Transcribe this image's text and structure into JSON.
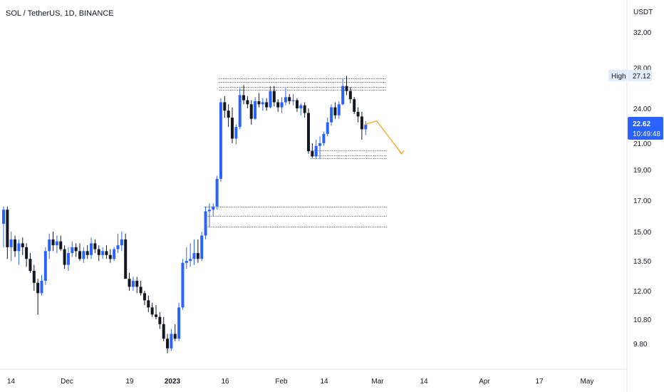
{
  "chart_data": {
    "type": "candlestick",
    "title": "SOL / TetherUS, 1D, BINANCE",
    "currency": "USDT",
    "y_ticks": [
      "32.00",
      "28.00",
      "24.00",
      "21.00",
      "19.00",
      "17.00",
      "15.00",
      "13.50",
      "12.00",
      "10.80",
      "9.80"
    ],
    "x_ticks": [
      "14",
      "Dec",
      "19",
      "2023",
      "16",
      "Feb",
      "14",
      "Mar",
      "14",
      "Apr",
      "17",
      "May"
    ],
    "high_label": "High",
    "high_value": "27.12",
    "last_price": "22.62",
    "countdown": "10:49:48",
    "colors": {
      "up": "#2962ff",
      "down": "#131722",
      "projection": "#f5a623",
      "price_tag": "#2962ff",
      "high_tag_bg": "#e3ecfb"
    },
    "candles": [
      [
        15.5,
        16.6,
        14.2,
        16.4
      ],
      [
        16.4,
        16.6,
        13.6,
        14.2
      ],
      [
        14.2,
        15.0,
        13.5,
        14.6
      ],
      [
        14.6,
        14.8,
        13.7,
        14.0
      ],
      [
        14.0,
        14.6,
        13.3,
        14.4
      ],
      [
        14.4,
        14.7,
        13.8,
        14.2
      ],
      [
        14.2,
        14.4,
        13.2,
        13.6
      ],
      [
        13.6,
        13.9,
        12.9,
        13.0
      ],
      [
        13.0,
        13.3,
        12.0,
        12.4
      ],
      [
        12.4,
        12.6,
        11.0,
        11.9
      ],
      [
        11.9,
        12.8,
        11.8,
        12.5
      ],
      [
        12.5,
        14.2,
        12.3,
        14.0
      ],
      [
        14.0,
        14.9,
        13.6,
        14.6
      ],
      [
        14.6,
        15.0,
        14.0,
        14.3
      ],
      [
        14.3,
        14.8,
        13.9,
        14.5
      ],
      [
        14.5,
        14.8,
        14.0,
        14.1
      ],
      [
        14.1,
        14.3,
        13.1,
        13.3
      ],
      [
        13.3,
        14.2,
        13.0,
        13.9
      ],
      [
        13.9,
        14.5,
        13.7,
        14.2
      ],
      [
        14.2,
        14.4,
        13.7,
        14.0
      ],
      [
        14.0,
        14.4,
        13.5,
        13.6
      ],
      [
        13.6,
        14.2,
        13.4,
        14.0
      ],
      [
        14.0,
        14.3,
        13.6,
        13.8
      ],
      [
        13.8,
        14.7,
        13.6,
        14.4
      ],
      [
        14.4,
        14.6,
        13.9,
        14.1
      ],
      [
        14.1,
        14.3,
        13.5,
        13.8
      ],
      [
        13.8,
        14.2,
        13.6,
        14.0
      ],
      [
        14.0,
        14.3,
        13.6,
        13.8
      ],
      [
        13.8,
        14.1,
        13.4,
        13.6
      ],
      [
        13.6,
        14.2,
        13.5,
        14.1
      ],
      [
        14.1,
        14.9,
        13.9,
        14.3
      ],
      [
        14.3,
        15.0,
        14.0,
        14.6
      ],
      [
        14.6,
        14.9,
        12.7,
        12.6
      ],
      [
        12.6,
        12.9,
        12.0,
        12.2
      ],
      [
        12.2,
        12.7,
        12.0,
        12.5
      ],
      [
        12.5,
        12.7,
        11.9,
        12.2
      ],
      [
        12.2,
        12.5,
        11.8,
        11.9
      ],
      [
        11.9,
        12.0,
        11.4,
        11.6
      ],
      [
        11.6,
        11.8,
        11.1,
        11.3
      ],
      [
        11.3,
        11.5,
        10.9,
        11.0
      ],
      [
        11.0,
        11.4,
        10.8,
        10.9
      ],
      [
        10.9,
        11.1,
        10.4,
        10.6
      ],
      [
        10.6,
        10.9,
        9.9,
        10.0
      ],
      [
        10.0,
        10.2,
        9.4,
        9.6
      ],
      [
        9.6,
        10.4,
        9.5,
        10.2
      ],
      [
        10.2,
        10.6,
        9.9,
        10.0
      ],
      [
        10.0,
        11.5,
        9.9,
        11.3
      ],
      [
        11.3,
        13.6,
        11.2,
        13.4
      ],
      [
        13.4,
        14.2,
        13.1,
        13.5
      ],
      [
        13.5,
        14.4,
        13.2,
        13.6
      ],
      [
        13.6,
        14.6,
        13.3,
        13.9
      ],
      [
        13.9,
        14.6,
        13.4,
        13.6
      ],
      [
        13.6,
        15.0,
        13.5,
        14.8
      ],
      [
        14.8,
        16.6,
        14.6,
        16.3
      ],
      [
        16.3,
        16.8,
        15.3,
        16.4
      ],
      [
        16.4,
        16.8,
        16.0,
        16.6
      ],
      [
        16.6,
        18.6,
        16.4,
        18.4
      ],
      [
        18.4,
        25.0,
        18.2,
        24.6
      ],
      [
        24.6,
        25.2,
        23.2,
        23.8
      ],
      [
        23.8,
        24.4,
        22.4,
        23.2
      ],
      [
        23.2,
        24.1,
        21.0,
        21.4
      ],
      [
        21.4,
        22.6,
        20.9,
        22.4
      ],
      [
        22.4,
        26.0,
        22.2,
        25.3
      ],
      [
        25.3,
        26.3,
        24.4,
        24.8
      ],
      [
        24.8,
        25.2,
        24.0,
        24.4
      ],
      [
        24.4,
        24.8,
        22.6,
        23.1
      ],
      [
        23.1,
        25.1,
        23.0,
        24.7
      ],
      [
        24.7,
        25.5,
        24.1,
        24.4
      ],
      [
        24.4,
        25.0,
        23.8,
        24.6
      ],
      [
        24.6,
        25.0,
        23.8,
        24.1
      ],
      [
        24.1,
        26.2,
        24.0,
        25.7
      ],
      [
        25.7,
        26.2,
        24.2,
        24.6
      ],
      [
        24.6,
        24.9,
        23.7,
        24.1
      ],
      [
        24.1,
        25.1,
        23.6,
        24.6
      ],
      [
        24.6,
        26.0,
        24.3,
        25.1
      ],
      [
        25.1,
        25.4,
        24.4,
        24.7
      ],
      [
        24.7,
        25.4,
        24.3,
        24.8
      ],
      [
        24.8,
        25.0,
        23.7,
        24.0
      ],
      [
        24.0,
        24.5,
        23.4,
        24.3
      ],
      [
        24.3,
        24.6,
        23.2,
        23.6
      ],
      [
        23.6,
        24.0,
        20.2,
        20.4
      ],
      [
        20.4,
        21.0,
        19.9,
        20.0
      ],
      [
        20.0,
        21.3,
        19.8,
        20.8
      ],
      [
        20.8,
        21.6,
        19.8,
        21.0
      ],
      [
        21.0,
        22.0,
        20.8,
        21.8
      ],
      [
        21.8,
        23.2,
        21.6,
        22.8
      ],
      [
        22.8,
        24.4,
        22.5,
        24.1
      ],
      [
        24.1,
        24.6,
        23.1,
        23.4
      ],
      [
        23.4,
        24.7,
        23.1,
        24.4
      ],
      [
        24.4,
        27.0,
        24.3,
        26.2
      ],
      [
        26.2,
        27.2,
        25.3,
        25.7
      ],
      [
        25.7,
        26.1,
        24.5,
        24.9
      ],
      [
        24.9,
        25.1,
        23.5,
        23.7
      ],
      [
        23.7,
        24.1,
        22.8,
        23.3
      ],
      [
        23.3,
        23.7,
        21.3,
        22.2
      ],
      [
        22.2,
        22.9,
        21.7,
        22.6
      ]
    ],
    "levels": [
      [
        26.95,
        94
      ],
      [
        26.6,
        94
      ],
      [
        26.1,
        94
      ],
      [
        25.85,
        94
      ],
      [
        20.45,
        94
      ],
      [
        20.1,
        94
      ],
      [
        19.85,
        94
      ],
      [
        16.6,
        94
      ],
      [
        16.0,
        94
      ],
      [
        15.3,
        94
      ]
    ],
    "projection": [
      [
        94,
        22.6
      ],
      [
        96,
        22.8
      ],
      [
        100,
        20.3
      ]
    ]
  }
}
